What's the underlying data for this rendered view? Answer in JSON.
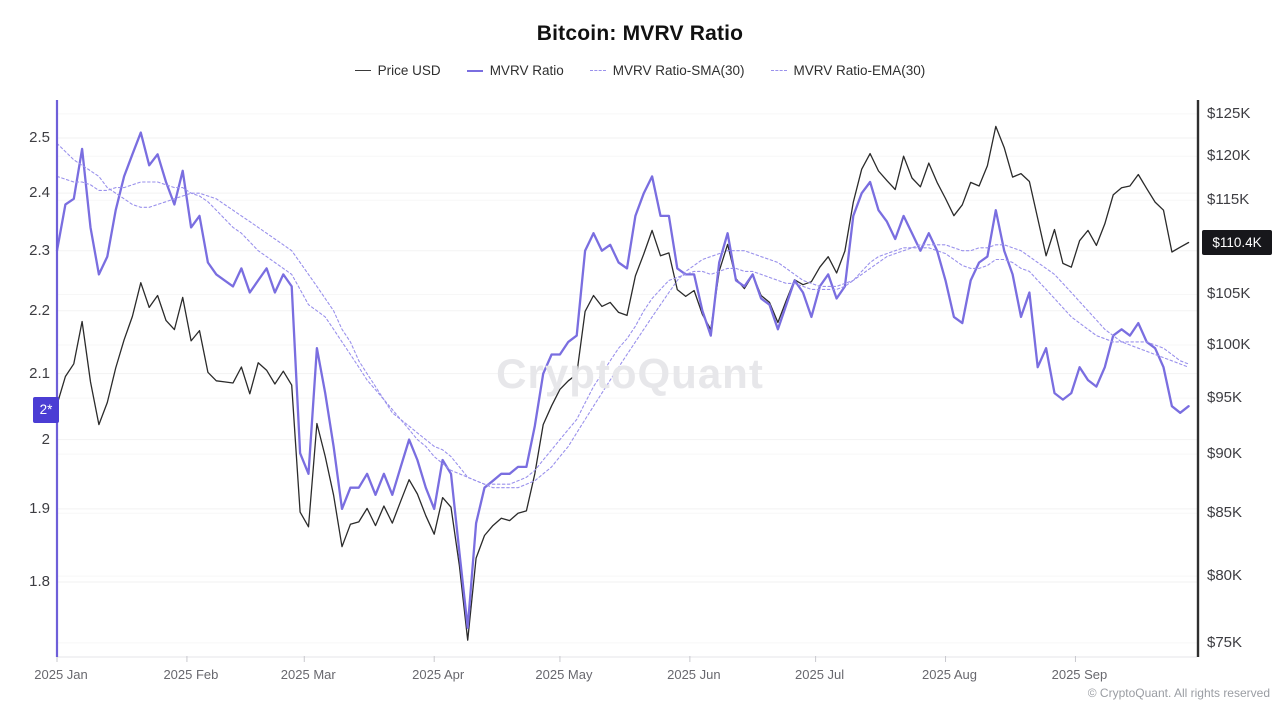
{
  "header": {
    "title": "Bitcoin: MVRV Ratio"
  },
  "legend": {
    "items": [
      {
        "label": "Price USD",
        "color": "#3a3a3a",
        "style": "solid"
      },
      {
        "label": "MVRV Ratio",
        "color": "#7a6ee0",
        "style": "solid"
      },
      {
        "label": "MVRV Ratio-SMA(30)",
        "color": "#9a91ec",
        "style": "dotted"
      },
      {
        "label": "MVRV Ratio-EMA(30)",
        "color": "#9a91ec",
        "style": "dotted"
      }
    ]
  },
  "watermark": "CryptoQuant",
  "footer": {
    "copyright": "© CryptoQuant. All rights reserved"
  },
  "axes": {
    "left": {
      "scale": "log",
      "axis_color": "#6e5fd9",
      "tick_labels": [
        "2.5",
        "2.4",
        "2.3",
        "2.2",
        "2.1",
        "2",
        "1.9",
        "1.8"
      ],
      "tick_values": [
        2.5,
        2.4,
        2.3,
        2.2,
        2.1,
        2.0,
        1.9,
        1.8
      ],
      "current_badge": {
        "label": "2*",
        "value": 2.045,
        "bg_color": "#4b3dd4"
      }
    },
    "right": {
      "scale": "log",
      "axis_color": "#2f2f2f",
      "tick_labels": [
        "$125K",
        "$120K",
        "$115K",
        "$105K",
        "$100K",
        "$95K",
        "$90K",
        "$85K",
        "$80K",
        "$75K"
      ],
      "tick_values": [
        125,
        120,
        115,
        105,
        100,
        95,
        90,
        85,
        80,
        75
      ],
      "current_badge": {
        "label": "$110.4K",
        "value": 110.4,
        "bg_color": "#17171b"
      }
    },
    "x": {
      "labels": [
        "2025 Jan",
        "2025 Feb",
        "2025 Mar",
        "2025 Apr",
        "2025 May",
        "2025 Jun",
        "2025 Jul",
        "2025 Aug",
        "2025 Sep"
      ],
      "month_start_days": [
        0,
        31,
        59,
        90,
        120,
        151,
        181,
        212,
        243
      ]
    }
  },
  "chart_data": {
    "type": "line",
    "title": "Bitcoin: MVRV Ratio",
    "x_start_date": "2025-01-01",
    "x_end_date": "2025-09-28",
    "x_unit": "days since 2025-01-01",
    "x_days": [
      0,
      2,
      4,
      6,
      8,
      10,
      12,
      14,
      16,
      18,
      20,
      22,
      24,
      26,
      28,
      30,
      32,
      34,
      36,
      38,
      40,
      42,
      44,
      46,
      48,
      50,
      52,
      54,
      56,
      58,
      60,
      62,
      64,
      66,
      68,
      70,
      72,
      74,
      76,
      78,
      80,
      82,
      84,
      86,
      88,
      90,
      92,
      94,
      96,
      98,
      100,
      102,
      104,
      106,
      108,
      110,
      112,
      114,
      116,
      118,
      120,
      122,
      124,
      126,
      128,
      130,
      132,
      134,
      136,
      138,
      140,
      142,
      144,
      146,
      148,
      150,
      152,
      154,
      156,
      158,
      160,
      162,
      164,
      166,
      168,
      170,
      172,
      174,
      176,
      178,
      180,
      182,
      184,
      186,
      188,
      190,
      192,
      194,
      196,
      198,
      200,
      202,
      204,
      206,
      208,
      210,
      212,
      214,
      216,
      218,
      220,
      222,
      224,
      226,
      228,
      230,
      232,
      234,
      236,
      238,
      240,
      242,
      244,
      246,
      248,
      250,
      252,
      254,
      256,
      258,
      260,
      262,
      264,
      266,
      268,
      270
    ],
    "y_left_axis": {
      "label": "MVRV Ratio",
      "scale": "log",
      "range": [
        1.72,
        2.55
      ]
    },
    "y_right_axis": {
      "label": "Price USD (thousands)",
      "scale": "log",
      "range": [
        73,
        126
      ]
    },
    "grid": true,
    "legend_position": "top",
    "series": [
      {
        "name": "Price USD",
        "axis": "right",
        "unit": "USD thousands",
        "color": "#2b2b2b",
        "width": 1.3,
        "dash": null,
        "values": [
          94.4,
          97.0,
          98.2,
          102.3,
          96.5,
          92.6,
          94.6,
          97.8,
          100.5,
          102.8,
          106.2,
          103.7,
          104.9,
          102.4,
          101.5,
          104.7,
          100.4,
          101.4,
          97.4,
          96.6,
          96.5,
          96.4,
          97.9,
          95.4,
          98.3,
          97.6,
          96.3,
          97.5,
          96.2,
          85.1,
          83.9,
          92.7,
          89.8,
          86.5,
          82.3,
          84.1,
          84.3,
          85.4,
          84.0,
          85.6,
          84.2,
          86.0,
          87.8,
          86.6,
          84.8,
          83.3,
          86.3,
          85.5,
          80.8,
          75.2,
          81.4,
          83.2,
          84.0,
          84.6,
          84.4,
          85.0,
          85.2,
          88.3,
          92.6,
          94.3,
          95.8,
          96.6,
          97.2,
          103.3,
          104.9,
          103.8,
          104.2,
          103.2,
          102.9,
          106.9,
          109.2,
          111.7,
          109.0,
          109.3,
          105.5,
          104.8,
          105.4,
          103.0,
          101.5,
          107.4,
          110.2,
          106.6,
          105.6,
          107.0,
          104.9,
          104.2,
          102.2,
          104.4,
          106.5,
          106.0,
          106.3,
          107.8,
          108.9,
          107.2,
          109.5,
          114.8,
          118.5,
          120.3,
          118.3,
          117.2,
          116.2,
          120.0,
          117.5,
          116.5,
          119.2,
          117.0,
          115.2,
          113.3,
          114.5,
          117.0,
          116.6,
          118.9,
          123.5,
          121.0,
          117.6,
          118.0,
          117.1,
          113.0,
          109.0,
          111.8,
          108.2,
          107.8,
          110.6,
          111.7,
          110.1,
          112.4,
          115.6,
          116.4,
          116.6,
          117.9,
          116.3,
          114.8,
          113.9,
          109.4,
          109.9,
          110.4
        ]
      },
      {
        "name": "MVRV Ratio",
        "axis": "left",
        "unit": "ratio",
        "color": "#7a6ee0",
        "width": 2.3,
        "dash": null,
        "values": [
          2.3,
          2.38,
          2.39,
          2.48,
          2.34,
          2.26,
          2.29,
          2.37,
          2.43,
          2.47,
          2.51,
          2.45,
          2.47,
          2.42,
          2.38,
          2.44,
          2.34,
          2.36,
          2.28,
          2.26,
          2.25,
          2.24,
          2.27,
          2.23,
          2.25,
          2.27,
          2.23,
          2.26,
          2.24,
          1.98,
          1.95,
          2.14,
          2.07,
          1.99,
          1.9,
          1.93,
          1.93,
          1.95,
          1.92,
          1.95,
          1.92,
          1.96,
          2.0,
          1.97,
          1.93,
          1.9,
          1.97,
          1.95,
          1.84,
          1.74,
          1.88,
          1.93,
          1.94,
          1.95,
          1.95,
          1.96,
          1.96,
          2.02,
          2.1,
          2.13,
          2.13,
          2.15,
          2.16,
          2.3,
          2.33,
          2.3,
          2.31,
          2.28,
          2.27,
          2.36,
          2.4,
          2.43,
          2.36,
          2.36,
          2.27,
          2.26,
          2.26,
          2.2,
          2.16,
          2.28,
          2.33,
          2.25,
          2.24,
          2.26,
          2.22,
          2.21,
          2.17,
          2.21,
          2.25,
          2.23,
          2.19,
          2.24,
          2.26,
          2.22,
          2.24,
          2.36,
          2.4,
          2.42,
          2.37,
          2.35,
          2.32,
          2.36,
          2.33,
          2.3,
          2.33,
          2.3,
          2.25,
          2.19,
          2.18,
          2.25,
          2.28,
          2.29,
          2.37,
          2.3,
          2.26,
          2.19,
          2.23,
          2.11,
          2.14,
          2.07,
          2.06,
          2.07,
          2.11,
          2.09,
          2.08,
          2.11,
          2.16,
          2.17,
          2.16,
          2.18,
          2.15,
          2.14,
          2.11,
          2.05,
          2.04,
          2.05
        ]
      },
      {
        "name": "MVRV Ratio-SMA(30)",
        "axis": "left",
        "unit": "ratio",
        "color": "#9a91ec",
        "width": 1.1,
        "dash": "2.5 2.5",
        "values": [
          2.49,
          2.475,
          2.46,
          2.45,
          2.44,
          2.43,
          2.41,
          2.4,
          2.39,
          2.38,
          2.375,
          2.375,
          2.38,
          2.385,
          2.39,
          2.395,
          2.4,
          2.4,
          2.395,
          2.39,
          2.38,
          2.37,
          2.36,
          2.35,
          2.34,
          2.33,
          2.32,
          2.31,
          2.3,
          2.28,
          2.26,
          2.24,
          2.22,
          2.2,
          2.17,
          2.15,
          2.12,
          2.1,
          2.08,
          2.06,
          2.04,
          2.03,
          2.015,
          2.0,
          1.99,
          1.975,
          1.965,
          1.955,
          1.95,
          1.945,
          1.94,
          1.935,
          1.93,
          1.93,
          1.93,
          1.93,
          1.935,
          1.94,
          1.95,
          1.96,
          1.975,
          1.99,
          2.01,
          2.03,
          2.05,
          2.07,
          2.09,
          2.11,
          2.13,
          2.15,
          2.17,
          2.19,
          2.21,
          2.23,
          2.25,
          2.265,
          2.275,
          2.285,
          2.29,
          2.295,
          2.3,
          2.3,
          2.3,
          2.295,
          2.29,
          2.285,
          2.28,
          2.27,
          2.26,
          2.25,
          2.245,
          2.24,
          2.24,
          2.24,
          2.245,
          2.25,
          2.26,
          2.27,
          2.28,
          2.29,
          2.295,
          2.3,
          2.305,
          2.31,
          2.31,
          2.31,
          2.31,
          2.305,
          2.3,
          2.3,
          2.305,
          2.305,
          2.31,
          2.31,
          2.305,
          2.3,
          2.29,
          2.28,
          2.27,
          2.26,
          2.245,
          2.23,
          2.215,
          2.2,
          2.185,
          2.17,
          2.16,
          2.15,
          2.145,
          2.14,
          2.135,
          2.13,
          2.125,
          2.12,
          2.115,
          2.11
        ]
      },
      {
        "name": "MVRV Ratio-EMA(30)",
        "axis": "left",
        "unit": "ratio",
        "color": "#9a91ec",
        "width": 1.1,
        "dash": "2.5 2.5",
        "values": [
          2.43,
          2.425,
          2.42,
          2.42,
          2.415,
          2.405,
          2.405,
          2.41,
          2.41,
          2.415,
          2.42,
          2.42,
          2.42,
          2.415,
          2.41,
          2.41,
          2.4,
          2.395,
          2.385,
          2.37,
          2.355,
          2.34,
          2.33,
          2.315,
          2.3,
          2.29,
          2.28,
          2.27,
          2.26,
          2.235,
          2.21,
          2.2,
          2.19,
          2.17,
          2.15,
          2.13,
          2.11,
          2.09,
          2.075,
          2.06,
          2.045,
          2.03,
          2.02,
          2.01,
          2.0,
          1.99,
          1.985,
          1.975,
          1.96,
          1.945,
          1.94,
          1.935,
          1.935,
          1.935,
          1.935,
          1.94,
          1.945,
          1.955,
          1.97,
          1.985,
          2.0,
          2.015,
          2.03,
          2.055,
          2.08,
          2.1,
          2.12,
          2.14,
          2.155,
          2.175,
          2.2,
          2.22,
          2.235,
          2.25,
          2.255,
          2.26,
          2.265,
          2.265,
          2.26,
          2.265,
          2.27,
          2.27,
          2.265,
          2.265,
          2.26,
          2.255,
          2.25,
          2.245,
          2.245,
          2.24,
          2.235,
          2.235,
          2.235,
          2.235,
          2.24,
          2.25,
          2.265,
          2.28,
          2.29,
          2.295,
          2.3,
          2.305,
          2.305,
          2.305,
          2.305,
          2.3,
          2.295,
          2.285,
          2.275,
          2.27,
          2.27,
          2.275,
          2.285,
          2.285,
          2.28,
          2.27,
          2.265,
          2.25,
          2.235,
          2.22,
          2.205,
          2.19,
          2.18,
          2.17,
          2.16,
          2.155,
          2.15,
          2.15,
          2.15,
          2.15,
          2.15,
          2.145,
          2.14,
          2.13,
          2.12,
          2.115
        ]
      }
    ]
  }
}
